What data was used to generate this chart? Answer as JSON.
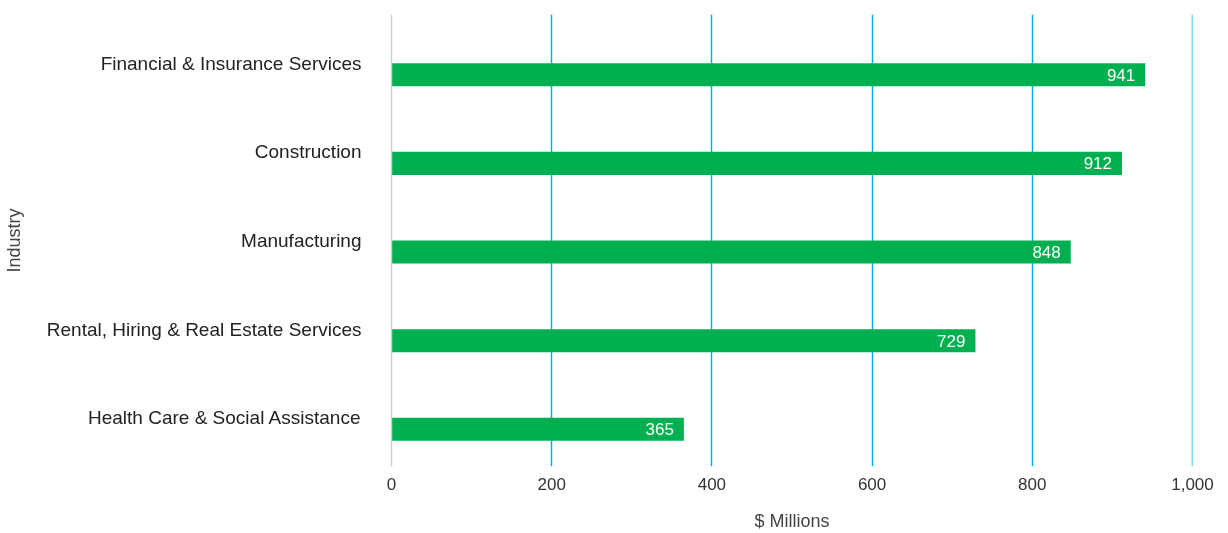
{
  "chart_data": {
    "type": "bar",
    "orientation": "horizontal",
    "xlabel": "$ Millions",
    "ylabel": "Industry",
    "categories": [
      "Financial & Insurance Services",
      "Construction",
      "Manufacturing",
      "Rental, Hiring & Real Estate Services",
      "Health Care & Social Assistance"
    ],
    "values": [
      941,
      912,
      848,
      729,
      365
    ],
    "color": "#00b050",
    "data_labels": true,
    "grid": "x",
    "xlim": [
      0,
      1000
    ],
    "xticks": [
      0,
      200,
      400,
      600,
      800,
      {
        "value": 1000,
        "label": "1,000"
      }
    ]
  }
}
